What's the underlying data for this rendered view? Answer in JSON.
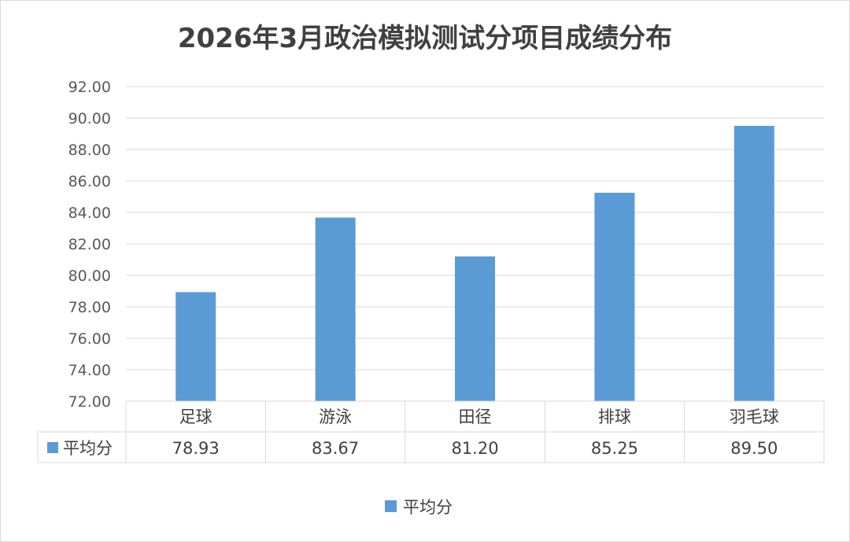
{
  "chart_data": {
    "type": "bar",
    "title": "2026年3月政治模拟测试分项目成绩分布",
    "categories": [
      "足球",
      "游泳",
      "田径",
      "排球",
      "羽毛球"
    ],
    "series": [
      {
        "name": "平均分",
        "values": [
          78.93,
          83.67,
          81.2,
          85.25,
          89.5
        ],
        "value_labels": [
          "78.93",
          "83.67",
          "81.20",
          "85.25",
          "89.50"
        ],
        "color": "#5b9bd5"
      }
    ],
    "ylim": [
      72,
      92
    ],
    "yticks": [
      "72.00",
      "74.00",
      "76.00",
      "78.00",
      "80.00",
      "82.00",
      "84.00",
      "86.00",
      "88.00",
      "90.00",
      "92.00"
    ],
    "grid": true,
    "data_table": true,
    "legend": "bottom"
  }
}
